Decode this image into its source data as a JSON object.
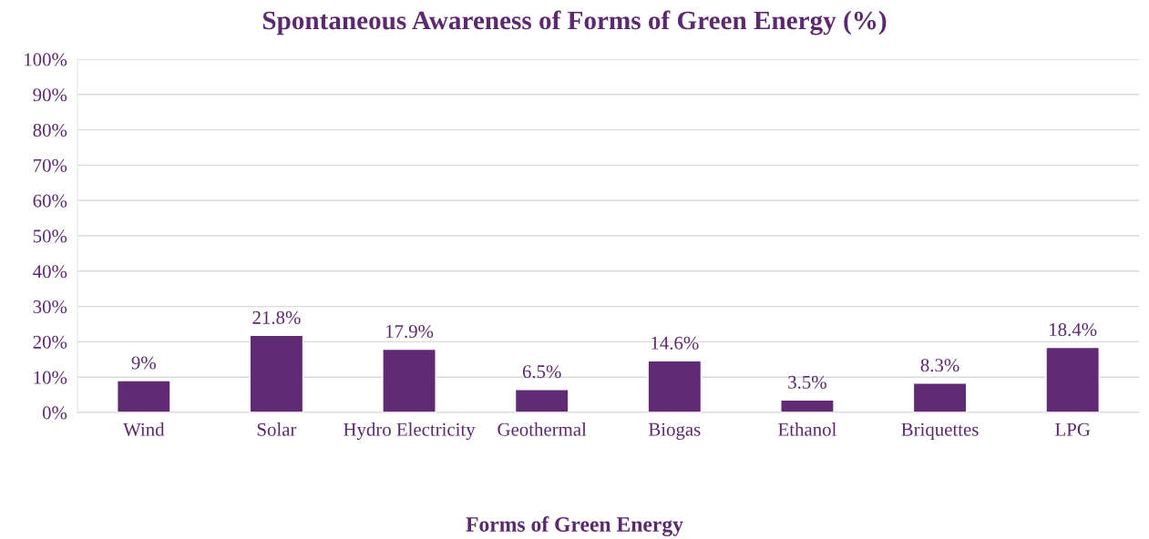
{
  "chart_data": {
    "type": "bar",
    "title": "Spontaneous Awareness of Forms of Green Energy (%)",
    "xlabel": "Forms of Green Energy",
    "categories": [
      "Wind",
      "Solar",
      "Hydro Electricity",
      "Geothermal",
      "Biogas",
      "Ethanol",
      "Briquettes",
      "LPG"
    ],
    "values": [
      9,
      21.8,
      17.9,
      6.5,
      14.6,
      3.5,
      8.3,
      18.4
    ],
    "value_labels": [
      "9%",
      "21.8%",
      "17.9%",
      "6.5%",
      "14.6%",
      "3.5%",
      "8.3%",
      "18.4%"
    ],
    "color": "#612a74",
    "ylim": [
      0,
      100
    ],
    "yticks": [
      {
        "value": 0,
        "label": "0%"
      },
      {
        "value": 10,
        "label": "10%"
      },
      {
        "value": 20,
        "label": "20%"
      },
      {
        "value": 30,
        "label": "30%"
      },
      {
        "value": 40,
        "label": "40%"
      },
      {
        "value": 50,
        "label": "50%"
      },
      {
        "value": 60,
        "label": "60%"
      },
      {
        "value": 70,
        "label": "70%"
      },
      {
        "value": 80,
        "label": "80%"
      },
      {
        "value": 90,
        "label": "90%"
      },
      {
        "value": 100,
        "label": "100%"
      }
    ],
    "grid": "y",
    "legend": false
  }
}
